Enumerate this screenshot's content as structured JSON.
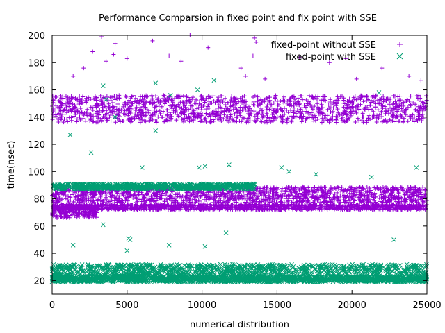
{
  "chart_data": {
    "type": "scatter",
    "title": "Performance Comparsion in fixed point and fix point with SSE",
    "xlabel": "numerical distribution",
    "ylabel": "time(nsec)",
    "xlim": [
      0,
      25000
    ],
    "ylim": [
      10,
      200
    ],
    "x_ticks": [
      0,
      5000,
      10000,
      15000,
      20000,
      25000
    ],
    "y_ticks": [
      20,
      40,
      60,
      80,
      100,
      120,
      140,
      160,
      180,
      200
    ],
    "grid": false,
    "legend_position": "top-right",
    "series": [
      {
        "name": "fixed-point without SSE",
        "marker": "plus",
        "color": "#9400d3",
        "bands": [
          {
            "y_center": 83,
            "y_spread": 6,
            "x_from": 0,
            "x_to": 25000
          },
          {
            "y_center": 74,
            "y_spread": 2,
            "x_from": 0,
            "x_to": 25000
          },
          {
            "y_center": 70,
            "y_spread": 4,
            "x_from": 0,
            "x_to": 3000
          },
          {
            "y_center": 146,
            "y_spread": 10,
            "x_from": 0,
            "x_to": 25000
          }
        ],
        "outliers": [
          [
            3300,
            199
          ],
          [
            4200,
            194
          ],
          [
            9200,
            200
          ],
          [
            10400,
            191
          ],
          [
            13500,
            198
          ],
          [
            13600,
            195
          ],
          [
            3600,
            181
          ],
          [
            4100,
            186
          ],
          [
            6700,
            196
          ],
          [
            7800,
            185
          ],
          [
            12600,
            176
          ],
          [
            12900,
            170
          ],
          [
            13400,
            185
          ],
          [
            16500,
            184
          ],
          [
            18500,
            180
          ],
          [
            19600,
            183
          ],
          [
            22000,
            176
          ],
          [
            23800,
            170
          ],
          [
            2700,
            188
          ],
          [
            5000,
            183
          ],
          [
            8600,
            181
          ],
          [
            1400,
            170
          ],
          [
            2100,
            176
          ],
          [
            14200,
            168
          ],
          [
            20300,
            168
          ],
          [
            24600,
            167
          ]
        ]
      },
      {
        "name": "fixed-point with SSE",
        "marker": "x",
        "color": "#009e73",
        "bands": [
          {
            "y_center": 26,
            "y_spread": 6,
            "x_from": 0,
            "x_to": 25000
          },
          {
            "y_center": 21,
            "y_spread": 2,
            "x_from": 0,
            "x_to": 25000
          },
          {
            "y_center": 89,
            "y_spread": 2,
            "x_from": 0,
            "x_to": 13500
          }
        ],
        "outliers": [
          [
            6900,
            165
          ],
          [
            10800,
            167
          ],
          [
            9700,
            160
          ],
          [
            21800,
            158
          ],
          [
            3400,
            163
          ],
          [
            3600,
            153
          ],
          [
            7900,
            156
          ],
          [
            3400,
            61
          ],
          [
            11600,
            55
          ],
          [
            1400,
            46
          ],
          [
            5100,
            51
          ],
          [
            5200,
            50
          ],
          [
            22800,
            50
          ],
          [
            7800,
            46
          ],
          [
            10200,
            45
          ],
          [
            5000,
            42
          ],
          [
            9800,
            103
          ],
          [
            10200,
            104
          ],
          [
            6000,
            103
          ],
          [
            15300,
            103
          ],
          [
            24300,
            103
          ],
          [
            6900,
            130
          ],
          [
            4200,
            140
          ],
          [
            1200,
            127
          ],
          [
            2600,
            114
          ],
          [
            11800,
            105
          ],
          [
            15800,
            100
          ],
          [
            17600,
            98
          ],
          [
            21300,
            96
          ]
        ]
      }
    ]
  }
}
